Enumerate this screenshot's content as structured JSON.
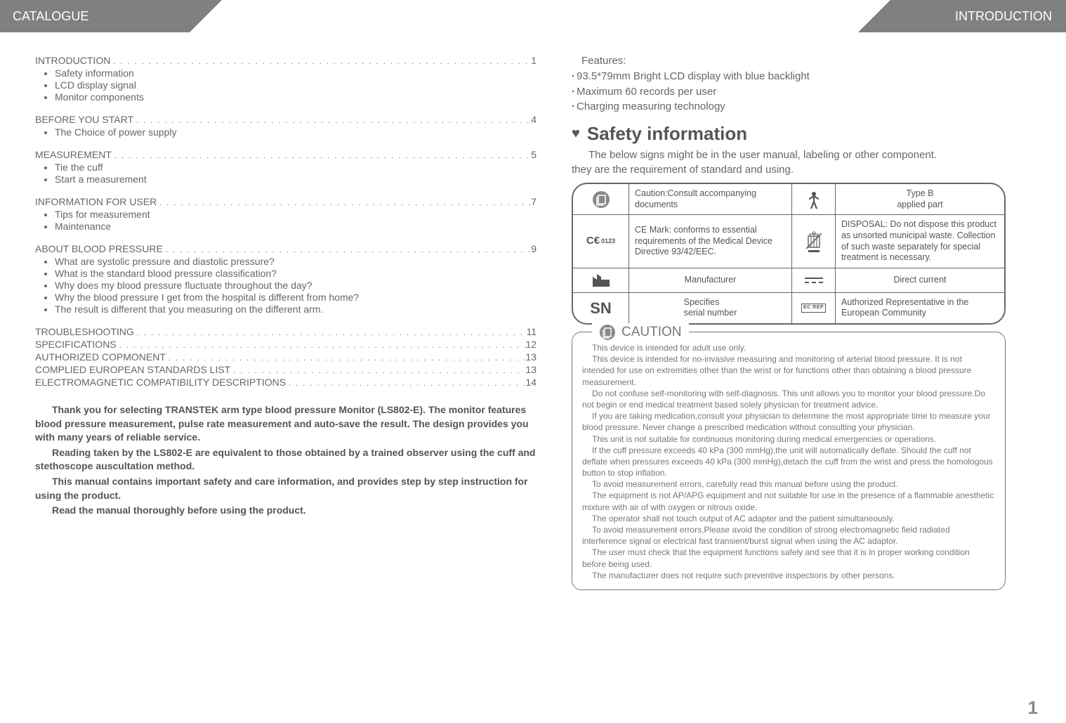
{
  "header": {
    "left": "CATALOGUE",
    "right": "INTRODUCTION"
  },
  "toc": {
    "sections": [
      {
        "title": "INTRODUCTION",
        "page": "1",
        "subs": [
          "Safety information",
          "LCD display signal",
          "Monitor components"
        ]
      },
      {
        "title": "BEFORE YOU START",
        "page": "4",
        "subs": [
          "The Choice of power supply"
        ]
      },
      {
        "title": "MEASUREMENT",
        "page": "5",
        "subs": [
          "Tie the cuff",
          "Start a measurement"
        ]
      },
      {
        "title": "INFORMATION FOR USER",
        "page": "7",
        "subs": [
          "Tips for measurement",
          "Maintenance"
        ]
      },
      {
        "title": "ABOUT BLOOD PRESSURE",
        "page": "9",
        "subs": [
          "What are systolic pressure and diastolic pressure?",
          "What is the standard blood pressure classification?",
          "Why does my blood pressure fluctuate throughout the day?",
          "Why the blood pressure I get from the hospital is different from home?",
          "The result is different that you measuring on the different arm."
        ]
      }
    ],
    "flat": [
      {
        "title": "TROUBLESHOOTING",
        "page": "11"
      },
      {
        "title": "SPECIFICATIONS",
        "page": "12"
      },
      {
        "title": "AUTHORIZED COPMONENT",
        "page": "13"
      },
      {
        "title": "COMPLIED EUROPEAN STANDARDS LIST",
        "page": "13"
      },
      {
        "title": "ELECTROMAGNETIC COMPATIBILITY DESCRIPTIONS",
        "page": "14"
      }
    ],
    "intro": [
      "Thank you for selecting TRANSTEK arm type blood pressure Monitor (LS802-E). The monitor features blood pressure measurement, pulse rate measurement and auto-save the result. The design provides you with many years of reliable service.",
      "Reading taken by the LS802-E are equivalent to those obtained by a trained observer using the cuff and stethoscope auscultation method.",
      "This manual contains important safety and care information, and provides step by step instruction for using the product.",
      "Read the manual thoroughly before using the product."
    ]
  },
  "features": {
    "title": "Features:",
    "items": [
      "93.5*79mm Bright LCD display with blue backlight",
      "Maximum 60 records per user",
      "Charging measuring technology"
    ]
  },
  "safety": {
    "heading": "Safety information",
    "intro1": "The below signs might be in the user manual, labeling or other component.",
    "intro2": "they are the requirement of standard and using."
  },
  "symbols": {
    "r1": {
      "a": "Caution:Consult accompanying documents",
      "b": "Type B\napplied part"
    },
    "r2": {
      "a": "CE Mark: conforms to essential requirements of the Medical Device Directive 93/42/EEC.",
      "b": "DISPOSAL: Do not dispose this product as unsorted municipal waste. Collection of such waste separately for special treatment is necessary."
    },
    "r3": {
      "a": "Manufacturer",
      "b": "Direct current"
    },
    "r4": {
      "sn": "SN",
      "a": "Specifies\nserial number",
      "b": "Authorized Representative in the European Community",
      "ecrep": "EC   REP"
    }
  },
  "caution": {
    "title": "CAUTION",
    "paras": [
      "This device is intended for adult use only.",
      "This device is intended for no-invasive measuring and monitoring of arterial blood pressure. It is not intended for use on extremities other than the wrist or for functions other than obtaining a blood pressure measurement.",
      "Do not confuse self-monitoring with self-diagnosis. This unit allows you to monitor your blood pressure.Do not begin or end medical treatment based solely physician for treatment advice.",
      "If you are taking medication,consult your physician to determine the most appropriate time to measure your blood pressure. Never change a prescribed medication without consulting your physician.",
      "This unit is not suitable for continuous monitoring during medical emergencies or operations.",
      "If the cuff pressure exceeds 40 kPa (300 mmHg),the unit will automatically deflate. Should the cuff not deflate when pressures exceeds 40 kPa (300 mmHg),detach the cuff from the wrist and press the homologous button to stop inflation.",
      "To avoid measurement errors, carefully read this manual before using the product.",
      "The equipment is not AP/APG equipment and not suitable for use in the presence of a flammable anesthetic mixture with air of with oxygen or nitrous oxide.",
      "The operator shall not touch output of AC adapter and the patient simultaneously.",
      "To avoid measurement errors,Please avoid the  condition of strong electromagnetic field radiated interference signal or electrical fast transient/burst signal when using the AC adaptor.",
      "The user must check that the equipment functions safely and see that it is in proper working condition before being used.",
      "The manufacturer does not require such preventive inspections by other persons."
    ]
  },
  "page_number": "1",
  "dots": ". . . . . . . . . . . . . . . . . . . . . . . . . . . . . . . . . . . . . . . . . . . . . . . . . . . . . . . . . . . . . . . . . . . . . . . . . . . . . . . . . . . . . . . . . . . . . . . . . . . ."
}
